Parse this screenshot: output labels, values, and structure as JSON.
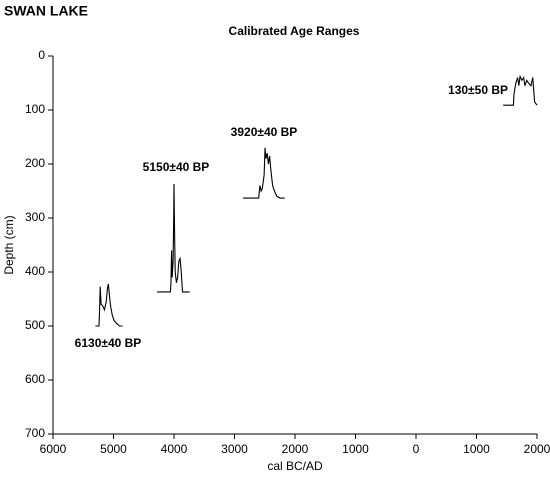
{
  "chart_data": {
    "type": "line",
    "title": "SWAN LAKE",
    "subtitle": "Calibrated Age Ranges",
    "x_label": "cal BC/AD",
    "y_label": "Depth (cm)",
    "xlim": [
      -6000,
      2000
    ],
    "xticks": [
      {
        "value": -6000,
        "label": "6000"
      },
      {
        "value": -5000,
        "label": "5000"
      },
      {
        "value": -4000,
        "label": "4000"
      },
      {
        "value": -3000,
        "label": "3000"
      },
      {
        "value": -2000,
        "label": "2000"
      },
      {
        "value": -1000,
        "label": "1000"
      },
      0,
      1000,
      2000
    ],
    "ylim": [
      0,
      700
    ],
    "y_inverted": true,
    "yticks": [
      0,
      100,
      200,
      300,
      400,
      500,
      600,
      700
    ],
    "series": [
      {
        "name": "6130±40 BP",
        "color": "#000000",
        "x": [
          -5300,
          -5240,
          -5230,
          -5220,
          -5205,
          -5180,
          -5150,
          -5120,
          -5100,
          -5085,
          -5070,
          -5050,
          -5020,
          -4990,
          -4950,
          -4900,
          -4850
        ],
        "values": [
          500,
          500,
          470,
          427,
          460,
          462,
          470,
          455,
          430,
          422,
          440,
          462,
          480,
          490,
          495,
          500,
          500
        ]
      },
      {
        "name": "5150±40 BP",
        "color": "#000000",
        "x": [
          -4280,
          -4060,
          -4050,
          -4040,
          -4030,
          -4015,
          -4005,
          -4000,
          -3990,
          -3980,
          -3960,
          -3940,
          -3920,
          -3900,
          -3880,
          -3860,
          -3740
        ],
        "values": [
          437,
          437,
          420,
          360,
          410,
          380,
          300,
          237,
          330,
          400,
          420,
          410,
          380,
          375,
          400,
          437,
          437
        ]
      },
      {
        "name": "3920±40 BP",
        "color": "#000000",
        "x": [
          -2860,
          -2600,
          -2580,
          -2560,
          -2540,
          -2510,
          -2495,
          -2480,
          -2460,
          -2440,
          -2420,
          -2400,
          -2370,
          -2340,
          -2300,
          -2250,
          -2170
        ],
        "values": [
          263,
          263,
          240,
          250,
          245,
          220,
          170,
          190,
          180,
          200,
          185,
          210,
          240,
          250,
          260,
          263,
          263
        ]
      },
      {
        "name": "130±50 BP",
        "color": "#000000",
        "x": [
          1440,
          1610,
          1620,
          1650,
          1680,
          1700,
          1720,
          1750,
          1780,
          1800,
          1830,
          1860,
          1900,
          1930,
          1950,
          1960,
          2000
        ],
        "values": [
          91,
          91,
          70,
          50,
          40,
          55,
          38,
          45,
          40,
          55,
          45,
          50,
          55,
          40,
          70,
          85,
          91
        ]
      }
    ]
  }
}
